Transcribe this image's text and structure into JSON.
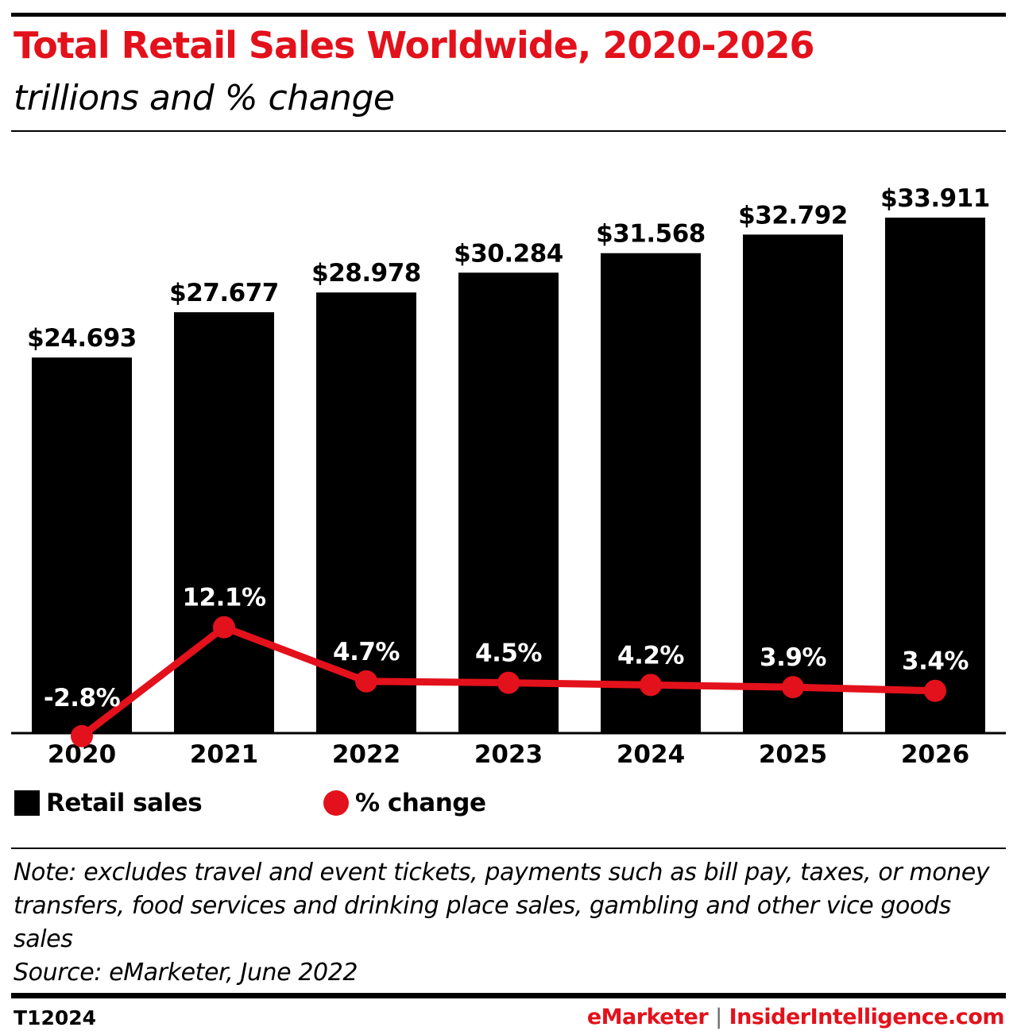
{
  "header": {
    "title": "Total Retail Sales Worldwide, 2020-2026",
    "subtitle": "trillions and % change"
  },
  "colors": {
    "accent": "#e3111b",
    "bars": "#000000"
  },
  "chart_data": {
    "type": "bar+line",
    "title": "Total Retail Sales Worldwide, 2020-2026",
    "subtitle": "trillions and % change",
    "categories": [
      "2020",
      "2021",
      "2022",
      "2023",
      "2024",
      "2025",
      "2026"
    ],
    "series": [
      {
        "name": "Retail sales",
        "type": "bar",
        "values": [
          24.693,
          27.677,
          28.978,
          30.284,
          31.568,
          32.792,
          33.911
        ],
        "labels": [
          "$24.693",
          "$27.677",
          "$28.978",
          "$30.284",
          "$31.568",
          "$32.792",
          "$33.911"
        ],
        "color": "#000000"
      },
      {
        "name": "% change",
        "type": "line",
        "values": [
          -2.8,
          12.1,
          4.7,
          4.5,
          4.2,
          3.9,
          3.4
        ],
        "labels": [
          "-2.8%",
          "12.1%",
          "4.7%",
          "4.5%",
          "4.2%",
          "3.9%",
          "3.4%"
        ],
        "color": "#e3111b"
      }
    ],
    "ylim": [
      0,
      36
    ],
    "grid": false,
    "legend": "bottom-left"
  },
  "legend": {
    "bar_label": "Retail sales",
    "line_label": "% change"
  },
  "note": {
    "text": "Note: excludes travel and event tickets, payments such as bill pay, taxes, or money transfers, food services and drinking place sales, gambling and other vice goods sales",
    "source": "Source: eMarketer, June 2022"
  },
  "footer": {
    "id": "T12024",
    "brand1": "eMarketer",
    "separator": "|",
    "brand2": "InsiderIntelligence.com"
  }
}
